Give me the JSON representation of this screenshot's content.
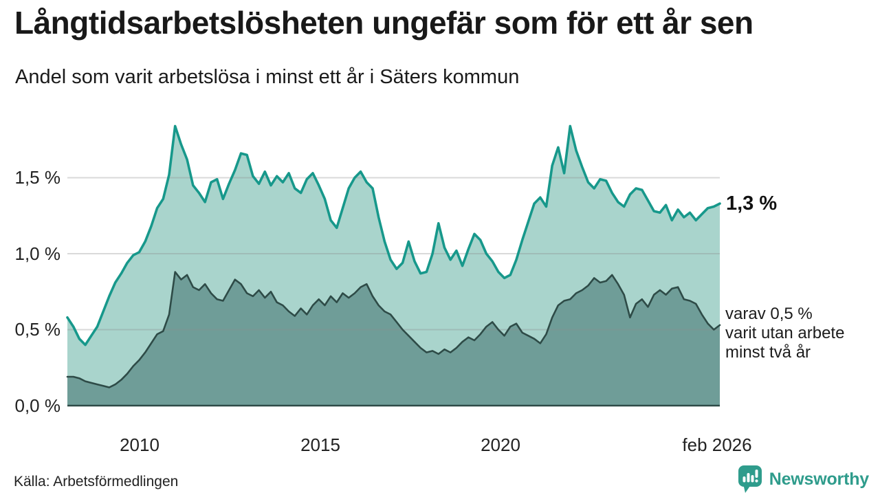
{
  "header": {
    "title": "Långtidsarbetslösheten ungefär som för ett år sen",
    "subtitle": "Andel som varit arbetslösa i minst ett år i Säters kommun"
  },
  "chart_data": {
    "type": "area",
    "title": "Långtidsarbetslösheten ungefär som för ett år sen",
    "subtitle": "Andel som varit arbetslösa i minst ett år i Säters kommun",
    "unit": "%",
    "x_start": "2008-01",
    "x_end": "2026-02",
    "point_interval": "2 months",
    "ylim": [
      0,
      1.9
    ],
    "grid": "horizontal",
    "x_axis": {
      "ticks": [
        {
          "year": 2010,
          "label": "2010"
        },
        {
          "year": 2015,
          "label": "2015"
        },
        {
          "year": 2020,
          "label": "2020"
        },
        {
          "year": 2026.08,
          "label": "feb 2026"
        }
      ]
    },
    "y_axis": {
      "ticks": [
        {
          "value": 1.5,
          "label": "1,5 %"
        },
        {
          "value": 1.0,
          "label": "1,0 %"
        },
        {
          "value": 0.5,
          "label": "0,5 %"
        },
        {
          "value": 0.0,
          "label": "0,0 %"
        }
      ]
    },
    "series": [
      {
        "name": "Arbetslösa minst ett år",
        "color": "#17988b",
        "fill": "#a9d4cc",
        "end_value": "1,3 %",
        "values": [
          0.58,
          0.52,
          0.44,
          0.4,
          0.46,
          0.52,
          0.62,
          0.72,
          0.81,
          0.87,
          0.94,
          0.99,
          1.01,
          1.08,
          1.18,
          1.3,
          1.36,
          1.52,
          1.84,
          1.72,
          1.62,
          1.45,
          1.4,
          1.34,
          1.47,
          1.49,
          1.36,
          1.46,
          1.55,
          1.66,
          1.65,
          1.51,
          1.46,
          1.54,
          1.45,
          1.51,
          1.47,
          1.53,
          1.43,
          1.4,
          1.49,
          1.53,
          1.45,
          1.36,
          1.22,
          1.17,
          1.3,
          1.43,
          1.5,
          1.54,
          1.47,
          1.43,
          1.24,
          1.08,
          0.96,
          0.9,
          0.94,
          1.08,
          0.95,
          0.87,
          0.88,
          1.0,
          1.2,
          1.04,
          0.96,
          1.02,
          0.92,
          1.03,
          1.13,
          1.09,
          1.0,
          0.95,
          0.88,
          0.84,
          0.86,
          0.96,
          1.09,
          1.21,
          1.33,
          1.37,
          1.31,
          1.58,
          1.7,
          1.53,
          1.84,
          1.68,
          1.57,
          1.47,
          1.43,
          1.49,
          1.48,
          1.4,
          1.34,
          1.31,
          1.39,
          1.43,
          1.42,
          1.35,
          1.28,
          1.27,
          1.32,
          1.22,
          1.29,
          1.24,
          1.27,
          1.22,
          1.26,
          1.3,
          1.31,
          1.33
        ]
      },
      {
        "name": "varav utan arbete minst två år",
        "color": "#2e4b47",
        "fill": "#6f9d98",
        "end_value": "0,5 %",
        "values": [
          0.19,
          0.19,
          0.18,
          0.16,
          0.15,
          0.14,
          0.13,
          0.12,
          0.14,
          0.17,
          0.21,
          0.26,
          0.3,
          0.35,
          0.41,
          0.47,
          0.49,
          0.6,
          0.88,
          0.83,
          0.86,
          0.78,
          0.76,
          0.8,
          0.74,
          0.7,
          0.69,
          0.76,
          0.83,
          0.8,
          0.74,
          0.72,
          0.76,
          0.71,
          0.75,
          0.68,
          0.66,
          0.62,
          0.59,
          0.64,
          0.6,
          0.66,
          0.7,
          0.66,
          0.72,
          0.68,
          0.74,
          0.71,
          0.74,
          0.78,
          0.8,
          0.72,
          0.66,
          0.62,
          0.6,
          0.55,
          0.5,
          0.46,
          0.42,
          0.38,
          0.35,
          0.36,
          0.34,
          0.37,
          0.35,
          0.38,
          0.42,
          0.45,
          0.43,
          0.47,
          0.52,
          0.55,
          0.5,
          0.46,
          0.52,
          0.54,
          0.48,
          0.46,
          0.44,
          0.41,
          0.47,
          0.58,
          0.66,
          0.69,
          0.7,
          0.74,
          0.76,
          0.79,
          0.84,
          0.81,
          0.82,
          0.86,
          0.8,
          0.73,
          0.58,
          0.67,
          0.7,
          0.65,
          0.73,
          0.76,
          0.73,
          0.77,
          0.78,
          0.7,
          0.69,
          0.67,
          0.6,
          0.54,
          0.5,
          0.53
        ]
      }
    ]
  },
  "annotations": {
    "primary": {
      "text": "1,3 %"
    },
    "secondary": {
      "lines": [
        "varav 0,5 %",
        "varit utan arbete",
        "minst två år"
      ]
    }
  },
  "footer": {
    "source": "Källa: Arbetsförmedlingen",
    "brand": "Newsworthy"
  },
  "colors": {
    "line_primary": "#17988b",
    "fill_primary": "#a9d4cc",
    "line_secondary": "#2e4b47",
    "fill_secondary": "#6f9d98",
    "gridline": "#dadada",
    "brand_teal": "#2f9c8c"
  }
}
